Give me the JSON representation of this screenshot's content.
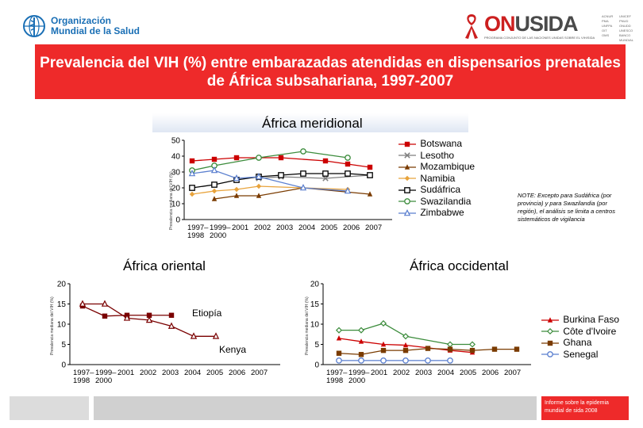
{
  "header": {
    "who_name": "Organización Mundial de la Salud",
    "unaids_name_prefix": "ON",
    "unaids_name_suffix": "USIDA",
    "unaids_subtitle": "PROGRAMA CONJUNTO DE LAS NACIONES UNIDAS SOBRE EL VIH/SIDA",
    "sponsors": [
      "ACNUR",
      "UNICEF",
      "PMA",
      "PNUD",
      "UNFPA",
      "ONUDD",
      "OIT",
      "UNESCO",
      "OMS",
      "BANCO MUNDIAL"
    ]
  },
  "title": "Prevalencia del VIH (%) entre embarazadas atendidas en dispensarios prenatales de África subsahariana, 1997-2007",
  "note": "NOTE: Excepto para Sudáfrica (por provincia) y para Swazilandia (por región), el análisis se limita a centros sistemáticos de vigilancia",
  "footer_text": "Informe sobre la epidemia mundial de sida 2008",
  "colors": {
    "banner": "#ee2a2a",
    "botswana": "#cc0000",
    "lesotho": "#7f7f7f",
    "mozambique": "#7a3b00",
    "namibia": "#e8a33c",
    "sudafrica": "#000000",
    "swazilandia": "#3c8c3c",
    "zimbabwe": "#5a7fcf",
    "oriental": "#7a0000",
    "burkina": "#cc0000",
    "cotedivoire": "#3c8c3c",
    "ghana": "#7a3b00",
    "senegal": "#5a7fcf"
  },
  "chart_data": [
    {
      "id": "meridional",
      "type": "line",
      "title": "África meridional",
      "ylabel": "Prevalencia mediana del VIH (%)",
      "xlabel": "",
      "categories": [
        "1997– 1998",
        "1999– 2000",
        "2001",
        "2002",
        "2003",
        "2004",
        "2005",
        "2006",
        "2007"
      ],
      "tick_labels_line1": [
        "1997–",
        "1999–",
        "2001",
        "2002",
        "2003",
        "2004",
        "2005",
        "2006",
        "2007"
      ],
      "tick_labels_line2": [
        "1998",
        "2000",
        "",
        "",
        "",
        "",
        "",
        "",
        ""
      ],
      "yticks": [
        0,
        10,
        20,
        30,
        40,
        50
      ],
      "ylim": [
        0,
        50
      ],
      "series": [
        {
          "name": "Botswana",
          "marker": "square",
          "values": [
            37,
            38,
            39,
            null,
            39,
            null,
            37,
            35,
            33
          ]
        },
        {
          "name": "Lesotho",
          "marker": "cross",
          "values": [
            null,
            null,
            null,
            26,
            27,
            null,
            26,
            null,
            28
          ]
        },
        {
          "name": "Mozambique",
          "marker": "triangle",
          "values": [
            null,
            13,
            15,
            15,
            null,
            20,
            null,
            null,
            16
          ]
        },
        {
          "name": "Namibia",
          "marker": "diamond",
          "values": [
            16,
            18,
            19,
            21,
            null,
            20,
            null,
            19,
            null
          ]
        },
        {
          "name": "Sudáfrica",
          "marker": "square-open",
          "values": [
            20,
            22,
            25,
            27,
            28,
            29,
            29,
            29,
            28
          ]
        },
        {
          "name": "Swazilandia",
          "marker": "circle",
          "values": [
            31,
            34,
            null,
            39,
            null,
            43,
            null,
            39,
            null
          ]
        },
        {
          "name": "Zimbabwe",
          "marker": "triangle-open",
          "values": [
            29,
            31,
            26,
            27,
            null,
            20,
            null,
            18,
            null
          ]
        }
      ]
    },
    {
      "id": "oriental",
      "type": "line",
      "title": "África oriental",
      "ylabel": "Prevalencia mediana del VIH (%)",
      "xlabel": "",
      "categories": [
        "1997– 1998",
        "1999– 2000",
        "2001",
        "2002",
        "2003",
        "2004",
        "2005",
        "2006",
        "2007"
      ],
      "tick_labels_line1": [
        "1997–",
        "1999–",
        "2001",
        "2002",
        "2003",
        "2004",
        "2005",
        "2006",
        "2007"
      ],
      "tick_labels_line2": [
        "1998",
        "2000",
        "",
        "",
        "",
        "",
        "",
        "",
        ""
      ],
      "yticks": [
        0,
        5,
        10,
        15,
        20
      ],
      "ylim": [
        0,
        20
      ],
      "series": [
        {
          "name": "Etiopía",
          "marker": "square",
          "values": [
            14.5,
            12,
            12.2,
            12.2,
            12.2,
            null,
            null,
            null,
            null
          ]
        },
        {
          "name": "Kenya",
          "marker": "triangle-open",
          "values": [
            15,
            15,
            11.5,
            11,
            9.5,
            7,
            7,
            null,
            null
          ]
        }
      ],
      "annotations": [
        "Etiopía",
        "Kenya"
      ]
    },
    {
      "id": "occidental",
      "type": "line",
      "title": "África occidental",
      "ylabel": "Prevalencia mediana del VIH (%)",
      "xlabel": "",
      "categories": [
        "1997– 1998",
        "1999– 2000",
        "2001",
        "2002",
        "2003",
        "2004",
        "2005",
        "2006",
        "2007"
      ],
      "tick_labels_line1": [
        "1997–",
        "1999–",
        "2001",
        "2002",
        "2003",
        "2004",
        "2005",
        "2006",
        "2007"
      ],
      "tick_labels_line2": [
        "1998",
        "2000",
        "",
        "",
        "",
        "",
        "",
        "",
        ""
      ],
      "yticks": [
        0,
        5,
        10,
        15,
        20
      ],
      "ylim": [
        0,
        20
      ],
      "series": [
        {
          "name": "Burkina Faso",
          "marker": "triangle",
          "values": [
            6.5,
            5.7,
            5,
            4.8,
            null,
            3.5,
            3,
            null,
            null
          ]
        },
        {
          "name": "Côte d'Ivoire",
          "marker": "diamond-open",
          "values": [
            8.5,
            8.5,
            10.2,
            7,
            null,
            5,
            5,
            null,
            null
          ]
        },
        {
          "name": "Ghana",
          "marker": "square",
          "values": [
            2.8,
            2.5,
            3.5,
            3.5,
            4,
            3.8,
            3.5,
            3.8,
            3.8
          ]
        },
        {
          "name": "Senegal",
          "marker": "circle-open",
          "values": [
            1,
            1,
            1,
            1,
            1,
            1,
            null,
            null,
            null
          ]
        }
      ]
    }
  ]
}
